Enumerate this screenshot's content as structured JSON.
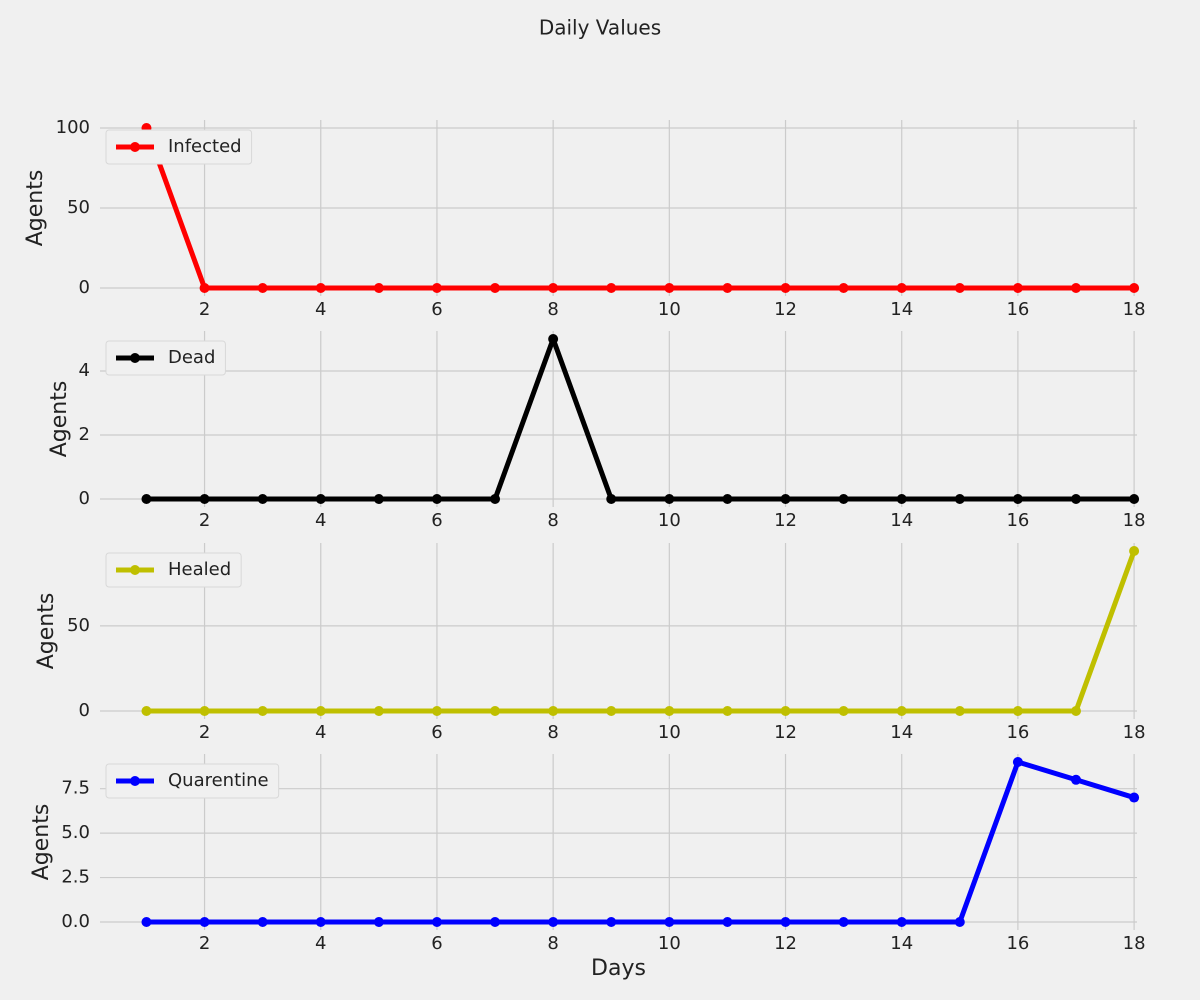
{
  "title": "Daily Values",
  "chart_data": [
    {
      "type": "line",
      "x": [
        1,
        2,
        3,
        4,
        5,
        6,
        7,
        8,
        9,
        10,
        11,
        12,
        13,
        14,
        15,
        16,
        17,
        18
      ],
      "series": [
        {
          "name": "Infected",
          "color": "#ff0000",
          "values": [
            100,
            0,
            0,
            0,
            0,
            0,
            0,
            0,
            0,
            0,
            0,
            0,
            0,
            0,
            0,
            0,
            0,
            0
          ]
        }
      ],
      "ylabel": "Agents",
      "xlim": [
        0.2,
        18.05
      ],
      "xticks": [
        2,
        4,
        6,
        8,
        10,
        12,
        14,
        16,
        18
      ],
      "ylim": [
        -5,
        105
      ],
      "yticks": [
        0,
        50,
        100
      ],
      "grid": true,
      "legend": "upper-left"
    },
    {
      "type": "line",
      "x": [
        1,
        2,
        3,
        4,
        5,
        6,
        7,
        8,
        9,
        10,
        11,
        12,
        13,
        14,
        15,
        16,
        17,
        18
      ],
      "series": [
        {
          "name": "Dead",
          "color": "#000000",
          "values": [
            0,
            0,
            0,
            0,
            0,
            0,
            0,
            5,
            0,
            0,
            0,
            0,
            0,
            0,
            0,
            0,
            0,
            0
          ]
        }
      ],
      "ylabel": "Agents",
      "xlim": [
        0.2,
        18.05
      ],
      "xticks": [
        2,
        4,
        6,
        8,
        10,
        12,
        14,
        16,
        18
      ],
      "ylim": [
        -0.25,
        5.25
      ],
      "yticks": [
        0,
        2,
        4
      ],
      "grid": true,
      "legend": "upper-left"
    },
    {
      "type": "line",
      "x": [
        1,
        2,
        3,
        4,
        5,
        6,
        7,
        8,
        9,
        10,
        11,
        12,
        13,
        14,
        15,
        16,
        17,
        18
      ],
      "series": [
        {
          "name": "Healed",
          "color": "#bfbf00",
          "values": [
            0,
            0,
            0,
            0,
            0,
            0,
            0,
            0,
            0,
            0,
            0,
            0,
            0,
            0,
            0,
            0,
            0,
            94
          ]
        }
      ],
      "ylabel": "Agents",
      "xlim": [
        0.2,
        18.05
      ],
      "xticks": [
        2,
        4,
        6,
        8,
        10,
        12,
        14,
        16,
        18
      ],
      "ylim": [
        -4.7,
        98.7
      ],
      "yticks": [
        0,
        50
      ],
      "grid": true,
      "legend": "upper-left"
    },
    {
      "type": "line",
      "x": [
        1,
        2,
        3,
        4,
        5,
        6,
        7,
        8,
        9,
        10,
        11,
        12,
        13,
        14,
        15,
        16,
        17,
        18
      ],
      "series": [
        {
          "name": "Quarentine",
          "color": "#0000ff",
          "values": [
            0,
            0,
            0,
            0,
            0,
            0,
            0,
            0,
            0,
            0,
            0,
            0,
            0,
            0,
            0,
            9,
            8,
            7
          ]
        }
      ],
      "ylabel": "Agents",
      "xlabel": "Days",
      "xlim": [
        0.2,
        18.05
      ],
      "xticks": [
        2,
        4,
        6,
        8,
        10,
        12,
        14,
        16,
        18
      ],
      "ylim": [
        -0.45,
        9.45
      ],
      "yticks": [
        {
          "value": 0,
          "label": "0.0"
        },
        2.5,
        {
          "value": 5,
          "label": "5.0"
        },
        7.5
      ],
      "grid": true,
      "legend": "upper-left"
    }
  ]
}
